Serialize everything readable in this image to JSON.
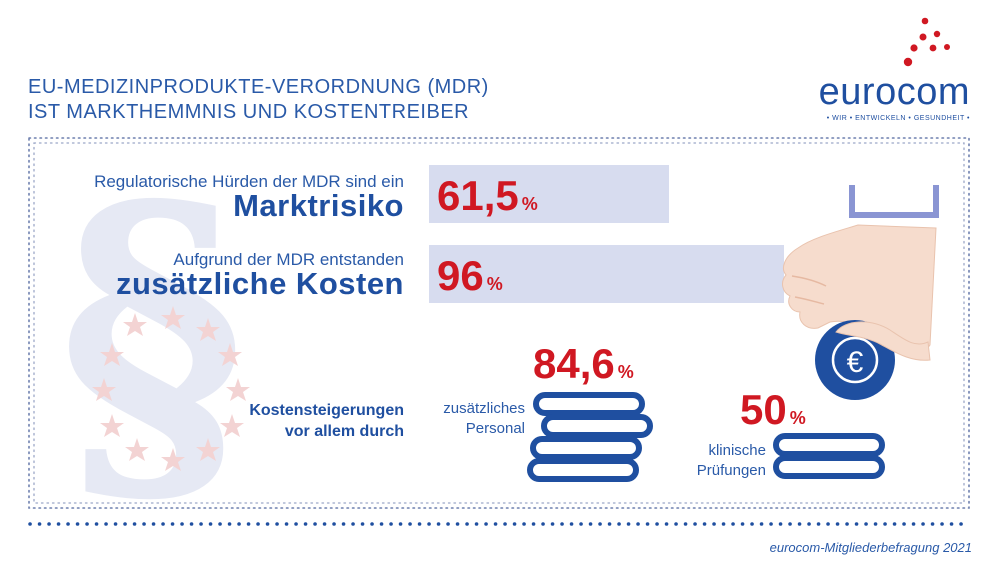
{
  "title": {
    "line1": "EU-MEDIZINPRODUKTE-VERORDNUNG (MDR)",
    "line2": "IST MARKTHEMMNIS UND KOSTENTREIBER"
  },
  "logo": {
    "word": "eurocom",
    "tagline": "• WIR • ENTWICKELN • GESUNDHEIT •"
  },
  "colors": {
    "accent_red": "#d01822",
    "brand_blue": "#1f4fa0",
    "bar_fill": "#d7dcef"
  },
  "chart_data": {
    "type": "bar",
    "unit": "%",
    "items": [
      {
        "label_small": "Regulatorische Hürden der MDR sind ein",
        "label_big": "Marktrisiko",
        "value": 61.5,
        "display": "61,5"
      },
      {
        "label_small": "Aufgrund der MDR entstanden",
        "label_big": "zusätzliche Kosten",
        "value": 96,
        "display": "96"
      }
    ],
    "cost_drivers": {
      "heading_line1": "Kostensteigerungen",
      "heading_line2": "vor allem durch",
      "items": [
        {
          "label_line1": "zusätzliches",
          "label_line2": "Personal",
          "value": 84.6,
          "display": "84,6"
        },
        {
          "label_line1": "klinische",
          "label_line2": "Prüfungen",
          "value": 50,
          "display": "50"
        }
      ]
    }
  },
  "icons": {
    "background": "paragraph-sign-with-eu-stars-icon",
    "hand": "hand-holding-euro-coin-icon",
    "coin_symbol": "€",
    "stacks": "coin-stack-icon"
  },
  "source": "eurocom-Mitgliederbefragung 2021"
}
